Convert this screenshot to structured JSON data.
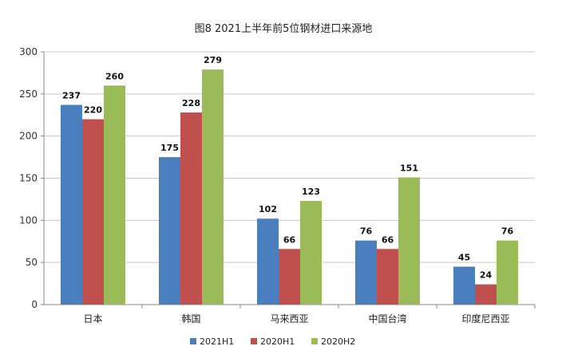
{
  "chart_data": {
    "type": "bar",
    "title": "图8 2021上半年前5位钢材进口来源地",
    "xlabel": "",
    "ylabel": "",
    "categories": [
      "日本",
      "韩国",
      "马来西亚",
      "中国台湾",
      "印度尼西亚"
    ],
    "series": [
      {
        "name": "2021H1",
        "color": "#4a7ebf",
        "values": [
          237,
          175,
          102,
          76,
          45
        ]
      },
      {
        "name": "2020H1",
        "color": "#c0504d",
        "values": [
          220,
          228,
          66,
          66,
          24
        ]
      },
      {
        "name": "2020H2",
        "color": "#9bbb59",
        "values": [
          260,
          279,
          123,
          151,
          76
        ]
      }
    ],
    "ylim": [
      0,
      300
    ],
    "yticks": [
      0,
      50,
      100,
      150,
      200,
      250,
      300
    ],
    "grid": true,
    "legend": "bottom-center"
  }
}
